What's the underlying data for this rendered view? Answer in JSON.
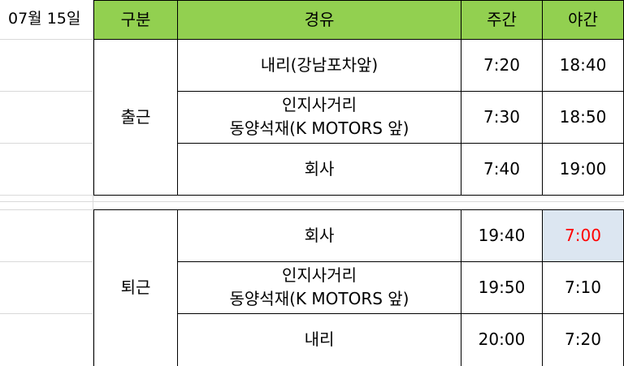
{
  "date": "07월 15일",
  "header": {
    "category": "구분",
    "route": "경유",
    "day": "주간",
    "night": "야간"
  },
  "sections": [
    {
      "name": "출근",
      "rows": [
        {
          "route": [
            "내리(강남포차앞)"
          ],
          "day": "7:20",
          "night": "18:40"
        },
        {
          "route": [
            "인지사거리",
            "동양석재(K MOTORS 앞)"
          ],
          "day": "7:30",
          "night": "18:50"
        },
        {
          "route": [
            "회사"
          ],
          "day": "7:40",
          "night": "19:00"
        }
      ]
    },
    {
      "name": "퇴근",
      "rows": [
        {
          "route": [
            "회사"
          ],
          "day": "19:40",
          "night": "7:00"
        },
        {
          "route": [
            "인지사거리",
            "동양석재(K MOTORS 앞)"
          ],
          "day": "19:50",
          "night": "7:10"
        },
        {
          "route": [
            "내리"
          ],
          "day": "20:00",
          "night": "7:20"
        }
      ]
    }
  ],
  "colors": {
    "header_bg": "#92d050",
    "highlight_text": "#ff0000",
    "highlight_bg": "#dce6f1"
  }
}
